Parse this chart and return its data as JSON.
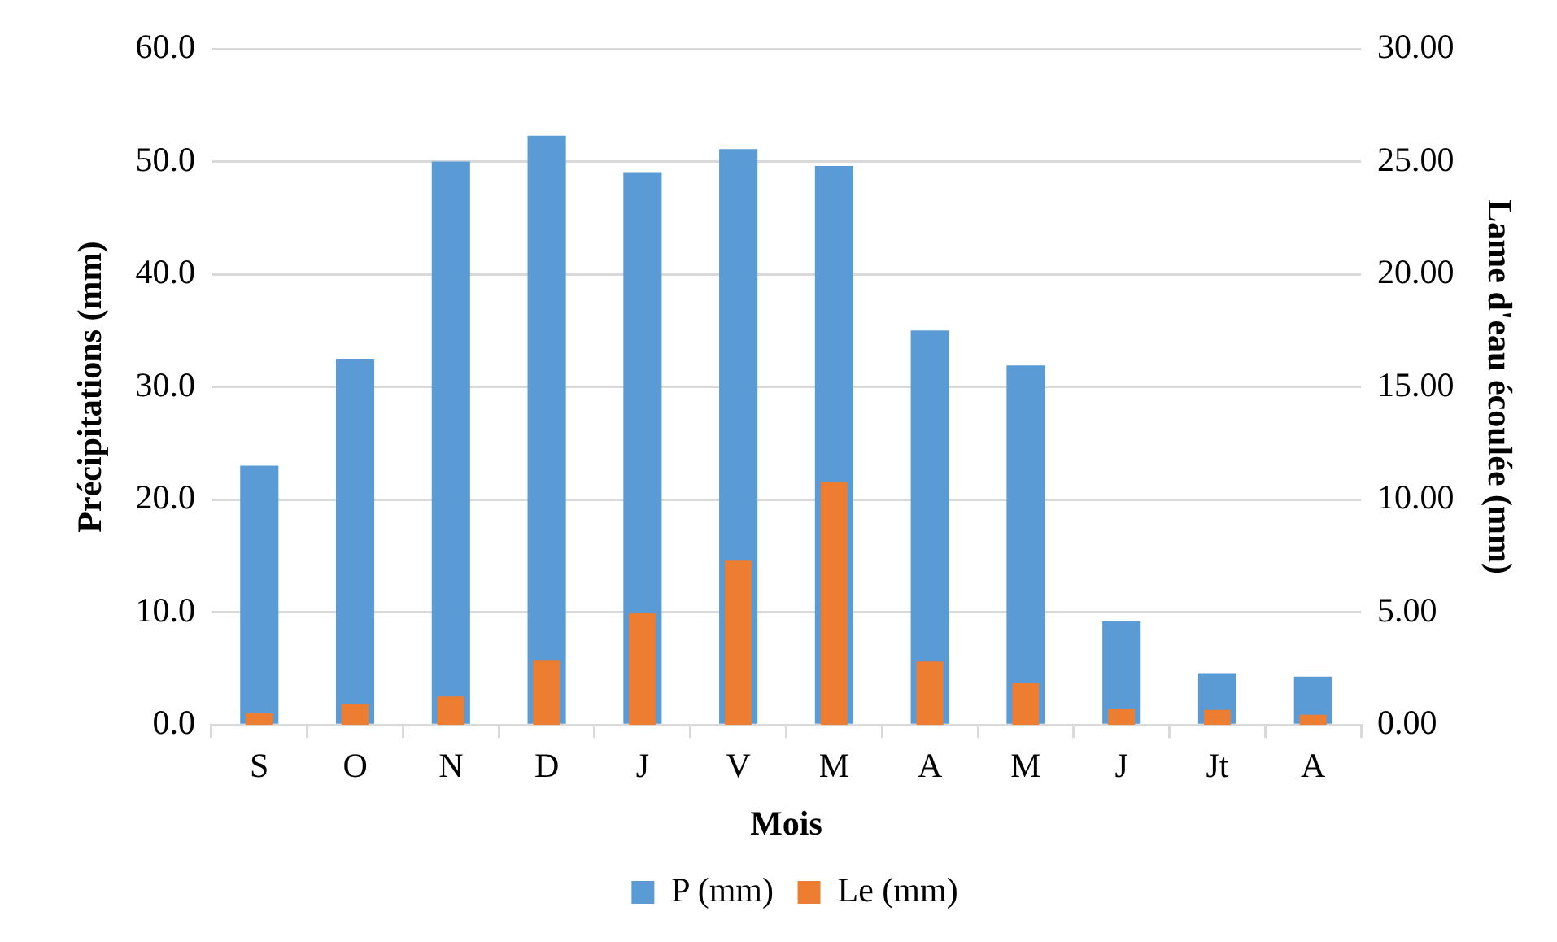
{
  "chart_data": {
    "type": "bar",
    "xlabel": "Mois",
    "ylabel": "Précipitations (mm)",
    "y2label": "Lame d'eau écoulée (mm)",
    "categories": [
      "S",
      "O",
      "N",
      "D",
      "J",
      "V",
      "M",
      "A",
      "M",
      "J",
      "Jt",
      "A"
    ],
    "series": [
      {
        "name": "P (mm)",
        "color": "#5b9bd5",
        "values": [
          23.0,
          32.5,
          50.0,
          52.3,
          49.0,
          51.1,
          49.6,
          35.0,
          31.9,
          9.2,
          4.6,
          4.3
        ]
      },
      {
        "name": "Le (mm)",
        "color": "#ed7d31",
        "axis": "y2",
        "values": [
          0.55,
          0.93,
          1.26,
          2.89,
          4.96,
          7.29,
          10.77,
          2.81,
          1.85,
          0.7,
          0.67,
          0.45
        ]
      }
    ],
    "ylim": [
      0,
      60
    ],
    "yticks": [
      {
        "value": 0,
        "label": "0.0"
      },
      {
        "value": 10,
        "label": "10.0"
      },
      {
        "value": 20,
        "label": "20.0"
      },
      {
        "value": 30,
        "label": "30.0"
      },
      {
        "value": 40,
        "label": "40.0"
      },
      {
        "value": 50,
        "label": "50.0"
      },
      {
        "value": 60,
        "label": "60.0"
      }
    ],
    "y2lim": [
      0,
      30
    ],
    "y2ticks": [
      {
        "value": 0,
        "label": "0.00"
      },
      {
        "value": 5,
        "label": "5.00"
      },
      {
        "value": 10,
        "label": "10.00"
      },
      {
        "value": 15,
        "label": "15.00"
      },
      {
        "value": 20,
        "label": "20.00"
      },
      {
        "value": 25,
        "label": "25.00"
      },
      {
        "value": 30,
        "label": "30.00"
      }
    ],
    "grid": "y",
    "legend": "bottom"
  }
}
